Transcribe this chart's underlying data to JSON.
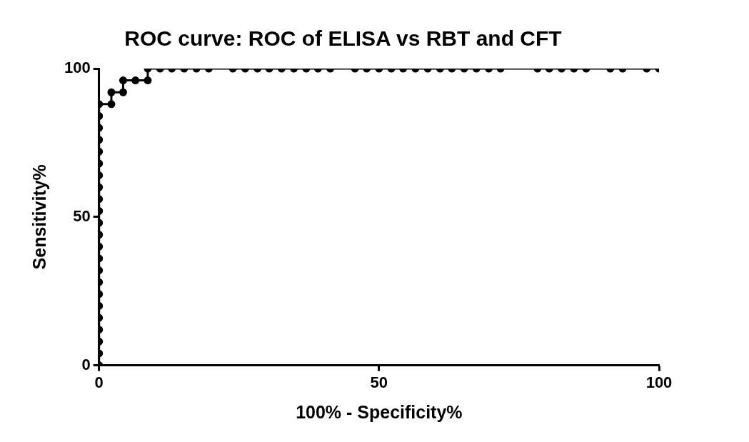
{
  "chart_data": {
    "type": "line",
    "title": "ROC curve: ROC of ELISA vs RBT and CFT",
    "xlabel": "100% - Specificity%",
    "ylabel": "Sensitivity%",
    "x": [
      0,
      0,
      0,
      0,
      0,
      0,
      0,
      0,
      0,
      0,
      0,
      0,
      0,
      0,
      0,
      0,
      0,
      0,
      0,
      0,
      0,
      0,
      0,
      2.2,
      2.2,
      4.3,
      4.3,
      6.5,
      8.7,
      8.7,
      10.9,
      13.0,
      15.2,
      17.4,
      19.6,
      23.9,
      26.1,
      28.3,
      30.4,
      32.6,
      34.8,
      37.0,
      39.1,
      41.3,
      45.7,
      47.8,
      50.0,
      52.2,
      54.3,
      56.5,
      58.7,
      60.9,
      63.0,
      65.2,
      67.4,
      69.6,
      71.7,
      78.3,
      80.4,
      82.6,
      84.8,
      87.0,
      91.3,
      93.5,
      97.8,
      100
    ],
    "series": [
      {
        "color": "#000000",
        "values": [
          0,
          4,
          8,
          12,
          16,
          20,
          24,
          28,
          32,
          36,
          40,
          44,
          48,
          52,
          56,
          60,
          64,
          68,
          72,
          76,
          80,
          84,
          88,
          88,
          92,
          92,
          96,
          96,
          96,
          100,
          100,
          100,
          100,
          100,
          100,
          100,
          100,
          100,
          100,
          100,
          100,
          100,
          100,
          100,
          100,
          100,
          100,
          100,
          100,
          100,
          100,
          100,
          100,
          100,
          100,
          100,
          100,
          100,
          100,
          100,
          100,
          100,
          100,
          100,
          100,
          100
        ]
      }
    ],
    "xlim": [
      0,
      100
    ],
    "xticks": [
      0,
      50,
      100
    ],
    "ylim": [
      0,
      100
    ],
    "yticks": [
      0,
      50,
      100
    ],
    "grid": false,
    "legend": false,
    "marker": "circle",
    "line_style": "solid"
  }
}
